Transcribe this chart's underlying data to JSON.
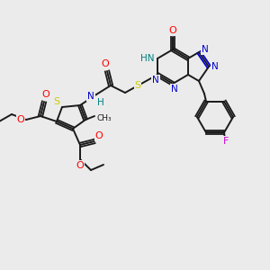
{
  "bg_color": "#ebebeb",
  "bond_color": "#1a1a1a",
  "colors": {
    "O": "#ff0000",
    "N": "#0000cc",
    "S": "#cccc00",
    "F": "#cc00cc",
    "H": "#008080",
    "C": "#1a1a1a"
  },
  "figsize": [
    3.0,
    3.0
  ],
  "dpi": 100
}
